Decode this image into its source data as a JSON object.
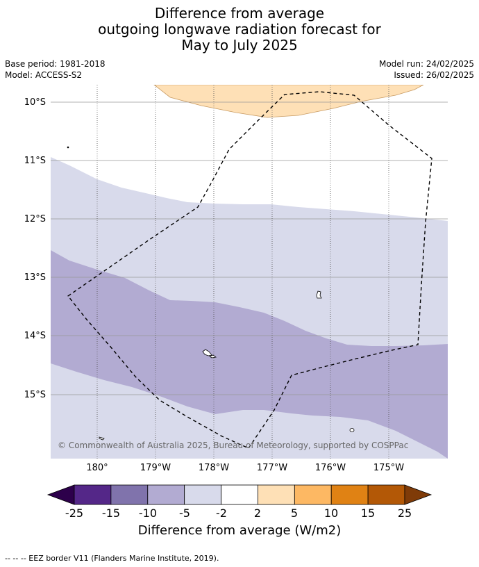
{
  "title": {
    "line1": "Difference from average",
    "line2": "outgoing longwave radiation forecast for",
    "line3": "May to July 2025"
  },
  "info": {
    "base_period": "Base period: 1981-2018",
    "model": "Model: ACCESS-S2",
    "model_run": "Model run: 24/02/2025",
    "issued": "Issued: 26/02/2025"
  },
  "map": {
    "lat_labels": [
      "10°S",
      "11°S",
      "12°S",
      "13°S",
      "14°S",
      "15°S"
    ],
    "lon_labels": [
      "180°",
      "179°W",
      "178°W",
      "177°W",
      "176°W",
      "175°W"
    ],
    "copyright": "© Commonwealth of Australia 2025, Bureau of Meteorology, supported by COSPPac",
    "colors": {
      "above_2_5": "#fee0b6",
      "below_minus2_minus5": "#d8daeb",
      "below_minus5_minus10": "#b2abd2"
    }
  },
  "colorbar": {
    "labels": [
      "-25",
      "-15",
      "-10",
      "-5",
      "-2",
      "2",
      "5",
      "10",
      "15",
      "25"
    ],
    "colors": [
      "#2d004b",
      "#542788",
      "#8073ac",
      "#b2abd2",
      "#d8daeb",
      "#ffffff",
      "#fee0b6",
      "#fdb863",
      "#e08214",
      "#b35806",
      "#7f3b08"
    ],
    "title": "Difference from average (W/m2)"
  },
  "footer": {
    "eez_note": "--  --  -- EEZ border V11 (Flanders Marine Institute, 2019)."
  }
}
